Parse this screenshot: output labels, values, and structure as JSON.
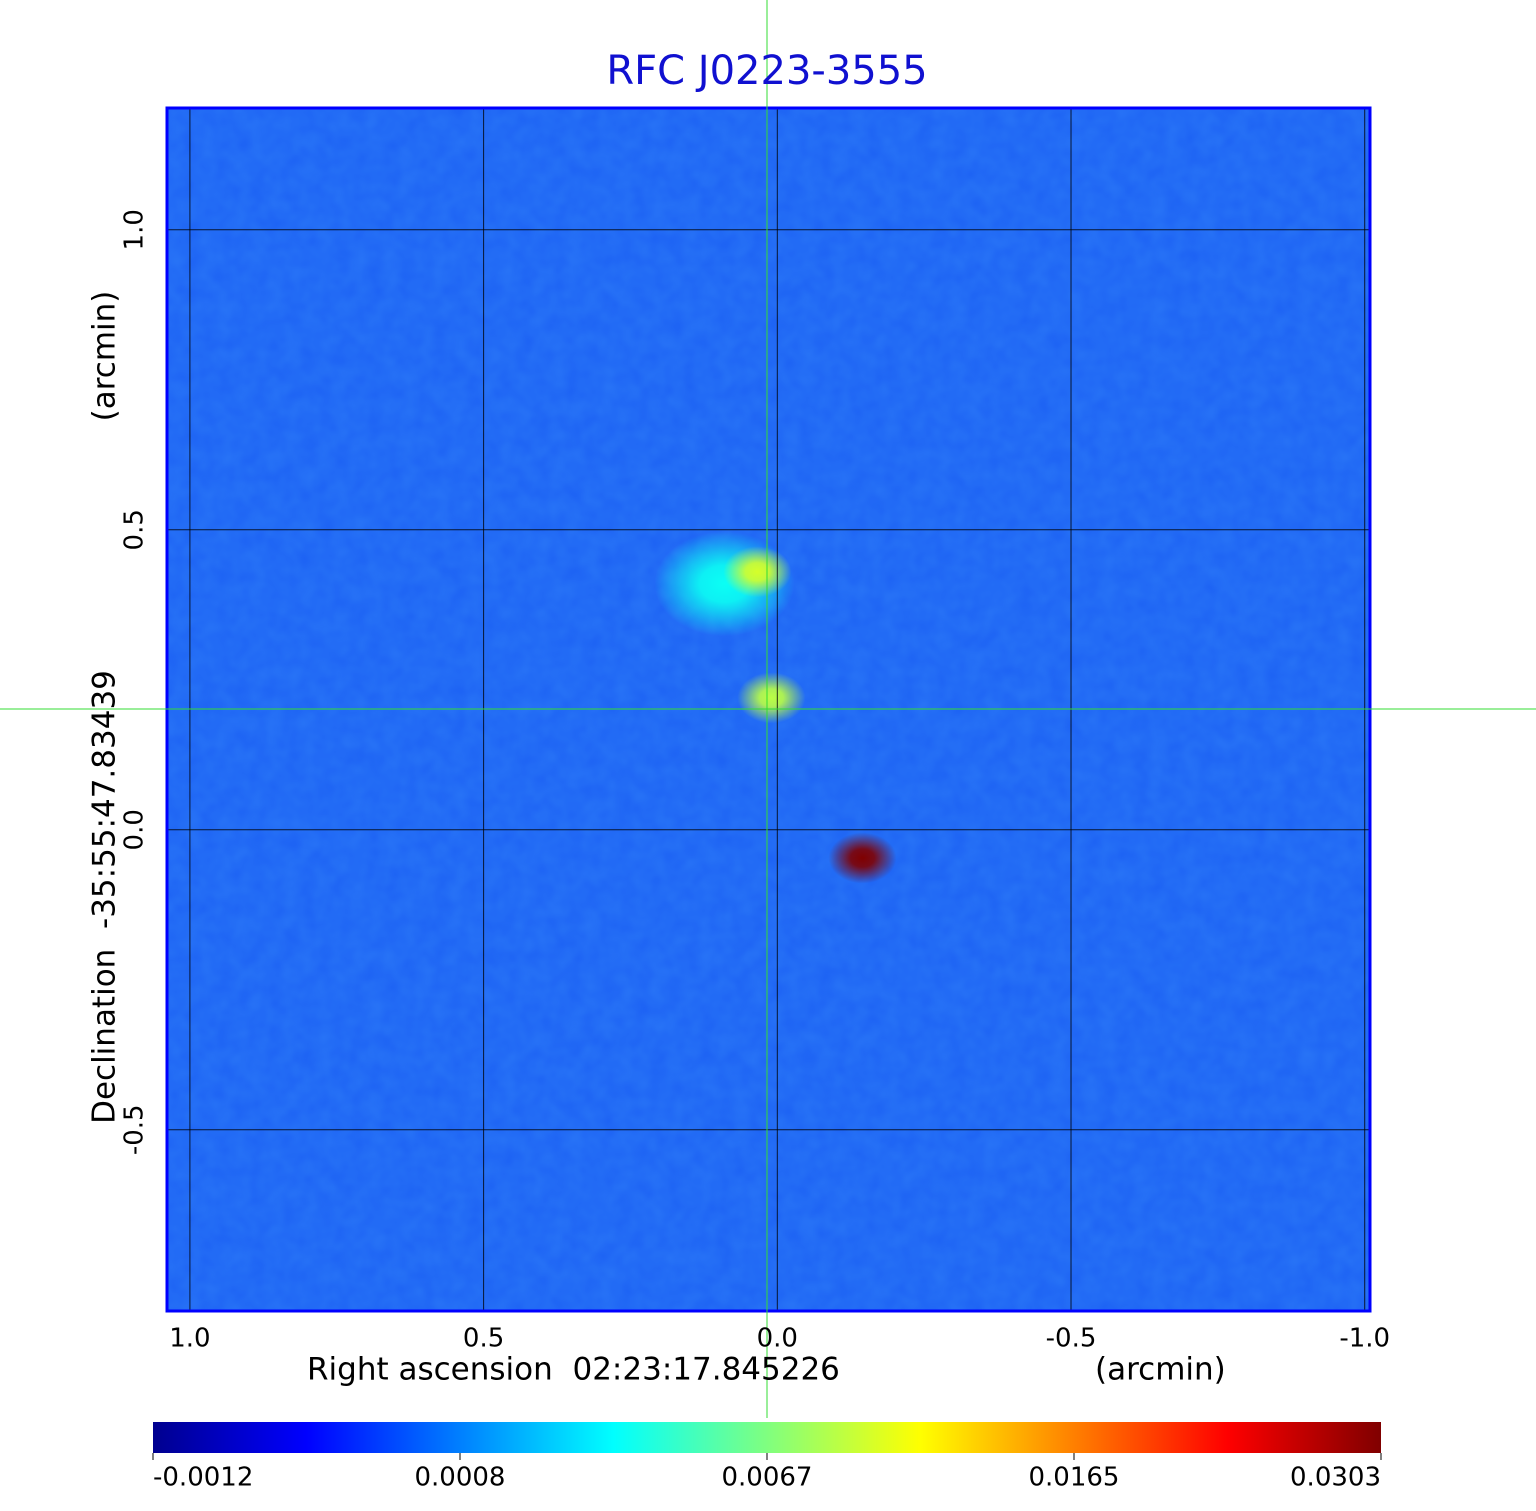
{
  "chart_data": {
    "type": "image",
    "title": "RFC J0223-3555",
    "x_label": "Right ascension  02:23:17.845226",
    "x_unit": "(arcmin)",
    "y_label": "Declination  -35:55:47.83439",
    "y_unit": "(arcmin)",
    "xlim": [
      1.039,
      -1.009
    ],
    "ylim": [
      -0.802,
      1.203
    ],
    "xticks": [
      {
        "value": 1.0,
        "label": "1.0"
      },
      {
        "value": 0.5,
        "label": "0.5"
      },
      {
        "value": 0.0,
        "label": "0.0"
      },
      {
        "value": -0.5,
        "label": "-0.5"
      },
      {
        "value": -1.0,
        "label": "-1.0"
      }
    ],
    "yticks": [
      {
        "value": -0.5,
        "label": "-0.5"
      },
      {
        "value": 0.0,
        "label": "0.0"
      },
      {
        "value": 0.5,
        "label": "0.5"
      },
      {
        "value": 1.0,
        "label": "1.0"
      }
    ],
    "grid": true,
    "colorbar_ticks": [
      -0.0012,
      0.0008,
      0.0067,
      0.0165,
      0.0303
    ],
    "sources": {
      "x": [
        0.09,
        0.034,
        0.01,
        -0.145
      ],
      "y": [
        0.41,
        0.43,
        0.22,
        -0.047
      ],
      "values": [
        0.004,
        0.01,
        0.009,
        0.0303
      ]
    }
  }
}
